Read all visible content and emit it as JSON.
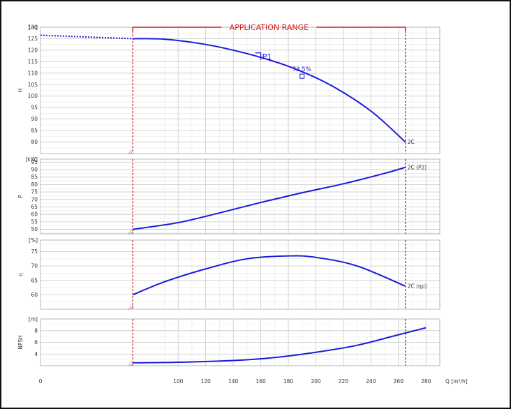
{
  "chart_data": {
    "type": "line",
    "application_range_label": "APPLICATION RANGE",
    "application_range": [
      67,
      265
    ],
    "x_axis": {
      "ticks": [
        0,
        100,
        120,
        140,
        160,
        180,
        200,
        220,
        240,
        260,
        280
      ],
      "label": "Q [m³/h]"
    },
    "panels": [
      {
        "id": "H",
        "unit": "[m]",
        "ylabel": "H",
        "ylim": [
          75,
          130
        ],
        "yticks": [
          80,
          85,
          90,
          95,
          100,
          105,
          110,
          115,
          120,
          125,
          130
        ],
        "series": [
          {
            "name": "2C",
            "line_style": "solid",
            "color": "#1a1adb",
            "x": [
              67,
              90,
              120,
              150,
              180,
              210,
              240,
              265
            ],
            "y": [
              125,
              124.8,
              122.5,
              118.5,
              113,
              105,
              93.5,
              80
            ]
          },
          {
            "name": "",
            "line_style": "dotted",
            "color": "#1a1adb",
            "x": [
              0,
              67
            ],
            "y": [
              126.5,
              125
            ]
          }
        ],
        "annotations": [
          {
            "text": "P1",
            "x": 160,
            "y": 117
          },
          {
            "text": "73.5%",
            "x": 190,
            "y": 110.5
          }
        ]
      },
      {
        "id": "P",
        "unit": "[kW]",
        "ylabel": "P",
        "ylim": [
          47,
          97
        ],
        "yticks": [
          50,
          55,
          60,
          65,
          70,
          75,
          80,
          85,
          90,
          95
        ],
        "series": [
          {
            "name": "2C (P2)",
            "line_style": "solid",
            "color": "#1a1adb",
            "x": [
              67,
              100,
              130,
              160,
              190,
              220,
              250,
              265
            ],
            "y": [
              50,
              54.5,
              61,
              68,
              74.5,
              80.5,
              87.5,
              91.5
            ]
          }
        ]
      },
      {
        "id": "eta",
        "unit": "[%]",
        "ylabel": "η",
        "ylim": [
          55,
          79
        ],
        "yticks": [
          60,
          65,
          70,
          75
        ],
        "series": [
          {
            "name": "2C (ηp)",
            "line_style": "solid",
            "color": "#1a1adb",
            "x": [
              67,
              90,
              120,
              150,
              180,
              200,
              230,
              265
            ],
            "y": [
              60,
              64.5,
              69,
              72.5,
              73.5,
              73,
              70,
              63
            ]
          }
        ]
      },
      {
        "id": "NPSH",
        "unit": "[m]",
        "ylabel": "NPSH",
        "ylim": [
          2,
          10
        ],
        "yticks": [
          4,
          6,
          8
        ],
        "series": [
          {
            "name": "",
            "line_style": "solid",
            "color": "#1a1adb",
            "x": [
              67,
              100,
              140,
              170,
              200,
              230,
              260,
              280
            ],
            "y": [
              2.5,
              2.6,
              2.9,
              3.4,
              4.3,
              5.5,
              7.3,
              8.5
            ]
          }
        ]
      }
    ]
  },
  "colors": {
    "curve": "#1a1adb",
    "application_range": "#d41c1c",
    "grid_major": "#c8c8c8",
    "grid_minor": "#e8e8e8",
    "border": "#111111"
  }
}
